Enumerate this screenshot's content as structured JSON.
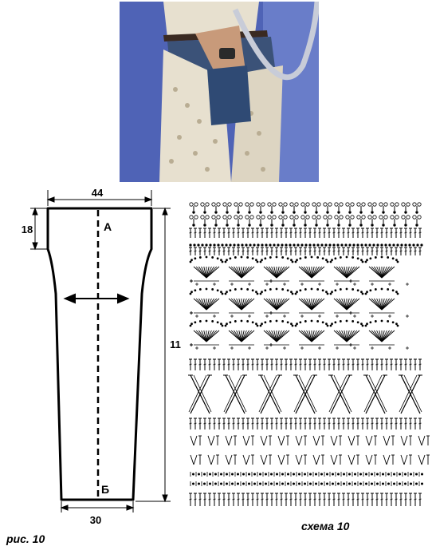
{
  "photo": {
    "alt": "",
    "colors": {
      "background": "#4f63b6",
      "lace": "#e7e0cf",
      "denim": "#3b5278",
      "skin": "#c89a7a"
    }
  },
  "pattern_piece": {
    "dim_top": "44",
    "dim_bottom": "30",
    "dim_left": "18",
    "dim_right": "11",
    "point_top": "А",
    "point_bottom": "Б"
  },
  "captions": {
    "figure": "рис. 10",
    "scheme": "схема 10"
  },
  "scheme": {
    "icon": "crochet-chart-icon",
    "row_types": [
      "picot-clusters",
      "double-crochet",
      "chain-arches",
      "fans",
      "crossed-stitches",
      "v-stitches",
      "single-crochet"
    ]
  }
}
